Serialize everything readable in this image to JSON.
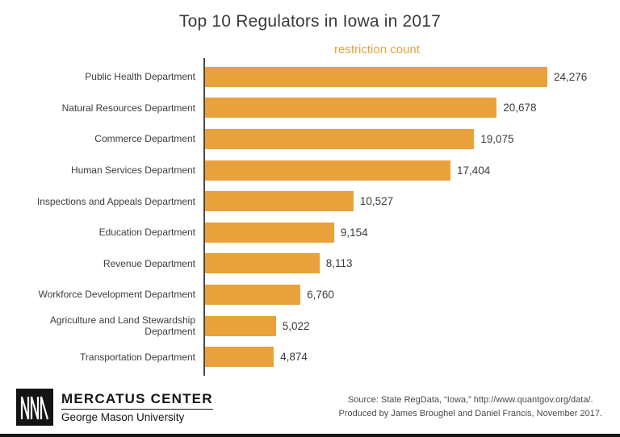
{
  "title": "Top 10 Regulators in Iowa in 2017",
  "legend": "restriction count",
  "chart_data": {
    "type": "bar",
    "orientation": "horizontal",
    "title": "Top 10 Regulators in Iowa in 2017",
    "xlabel": "restriction count",
    "ylabel": "",
    "xlim": [
      0,
      25000
    ],
    "grid": false,
    "legend_position": "top-center",
    "bar_color": "#e9a23b",
    "categories": [
      "Public Health Department",
      "Natural Resources Department",
      "Commerce Department",
      "Human Services Department",
      "Inspections and Appeals Department",
      "Education Department",
      "Revenue Department",
      "Workforce Development Department",
      "Agriculture and Land Stewardship Department",
      "Transportation Department"
    ],
    "values": [
      24276,
      20678,
      19075,
      17404,
      10527,
      9154,
      8113,
      6760,
      5022,
      4874
    ],
    "value_labels": [
      "24,276",
      "20,678",
      "19,075",
      "17,404",
      "10,527",
      "9,154",
      "8,113",
      "6,760",
      "5,022",
      "4,874"
    ]
  },
  "footer": {
    "logo_primary": "MERCATUS CENTER",
    "logo_secondary": "George Mason University",
    "source_line1": "Source: State RegData, “Iowa,” http://www.quantgov.org/data/.",
    "source_line2": "Produced by James Broughel and Daniel Francis, November 2017."
  },
  "colors": {
    "bar": "#e9a23b",
    "accent_text": "#e9a23b",
    "title_text": "#3a3a3a",
    "axis": "#4a4a4a",
    "footer_text": "#161616"
  }
}
